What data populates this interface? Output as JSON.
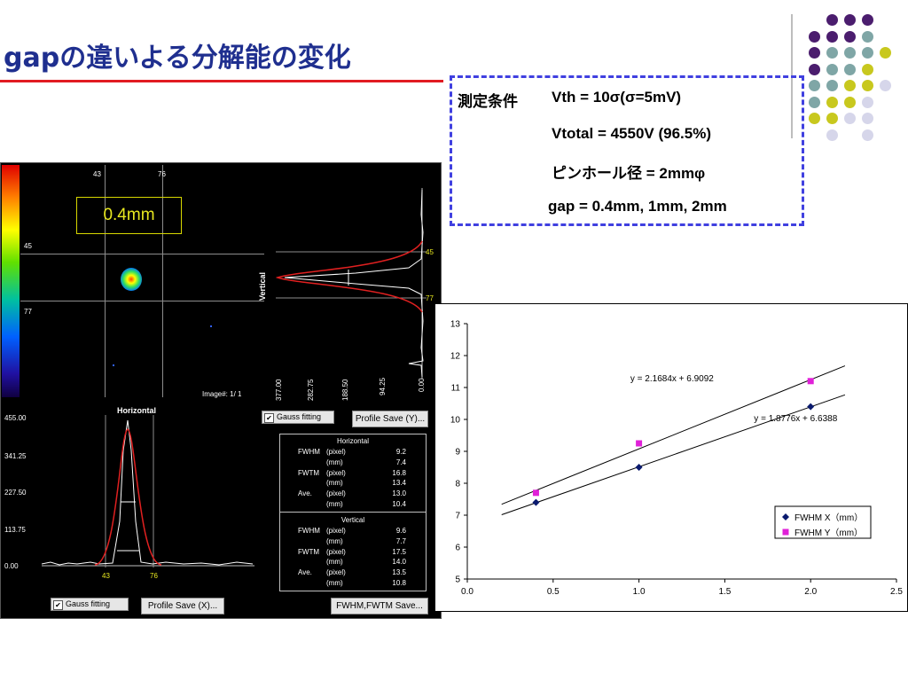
{
  "title": "gapの違いよる分解能の変化",
  "conditions": {
    "label": "測定条件",
    "lines": [
      "Vth = 10σ(σ=5mV)",
      "Vtotal = 4550V (96.5%)",
      "ピンホール径 = 2mmφ",
      "gap   = 0.4mm, 1mm, 2mm"
    ]
  },
  "decor_colors": {
    "purple": "#4b1d6e",
    "teal": "#7fa6a6",
    "olive": "#c8c81e",
    "lavender": "#d6d6ea"
  },
  "screenshot": {
    "gap_label": "0.4mm",
    "image_ticks_x": [
      "43",
      "76"
    ],
    "image_ticks_y": [
      "45",
      "77"
    ],
    "image_counter": "Image#:  1/ 1",
    "vertical_title": "Vertical",
    "vertical_ticks": [
      "377.00",
      "282.75",
      "188.50",
      "94.25",
      "0.00"
    ],
    "vertical_markers": [
      "45",
      "77"
    ],
    "horizontal_title": "Horizontal",
    "horizontal_ticks": [
      "455.00",
      "341.25",
      "227.50",
      "113.75",
      "0.00"
    ],
    "horizontal_markers": [
      "43",
      "76"
    ],
    "gauss_fitting_label": "Gauss fitting",
    "profile_save_y": "Profile Save (Y)...",
    "profile_save_x": "Profile Save (X)...",
    "fwhm_save": "FWHM,FWTM Save...",
    "stats": {
      "horizontal": {
        "title": "Horizontal",
        "rows": [
          [
            "FWHM",
            "(pixel)",
            "9.2"
          ],
          [
            "",
            "(mm)",
            "7.4"
          ],
          [
            "FWTM",
            "(pixel)",
            "16.8"
          ],
          [
            "",
            "(mm)",
            "13.4"
          ],
          [
            "Ave.",
            "(pixel)",
            "13.0"
          ],
          [
            "",
            "(mm)",
            "10.4"
          ]
        ]
      },
      "vertical": {
        "title": "Vertical",
        "rows": [
          [
            "FWHM",
            "(pixel)",
            "9.6"
          ],
          [
            "",
            "(mm)",
            "7.7"
          ],
          [
            "FWTM",
            "(pixel)",
            "17.5"
          ],
          [
            "",
            "(mm)",
            "14.0"
          ],
          [
            "Ave.",
            "(pixel)",
            "13.5"
          ],
          [
            "",
            "(mm)",
            "10.8"
          ]
        ]
      }
    }
  },
  "chart_data": {
    "type": "scatter",
    "xlim": [
      0.0,
      2.5
    ],
    "ylim": [
      5,
      13
    ],
    "x_ticks": [
      "0.0",
      "0.5",
      "1.0",
      "1.5",
      "2.0",
      "2.5"
    ],
    "y_ticks": [
      "5",
      "6",
      "7",
      "8",
      "9",
      "10",
      "11",
      "12",
      "13"
    ],
    "series": [
      {
        "name": "FWHM  X（mm）",
        "color": "#0a1a6e",
        "marker": "diamond",
        "x": [
          0.4,
          1.0,
          2.0
        ],
        "y": [
          7.4,
          8.5,
          10.4
        ]
      },
      {
        "name": "FWHM  Y（mm）",
        "color": "#e020d8",
        "marker": "square",
        "x": [
          0.4,
          1.0,
          2.0
        ],
        "y": [
          7.7,
          9.25,
          11.2
        ]
      }
    ],
    "fits": [
      {
        "equation": "y = 2.1684x + 6.9092",
        "slope": 2.1684,
        "intercept": 6.9092,
        "x_range": [
          0.2,
          2.2
        ]
      },
      {
        "equation": "y = 1.8776x + 6.6388",
        "slope": 1.8776,
        "intercept": 6.6388,
        "x_range": [
          0.2,
          2.2
        ]
      }
    ],
    "legend_position": "bottom-right",
    "grid": false
  }
}
